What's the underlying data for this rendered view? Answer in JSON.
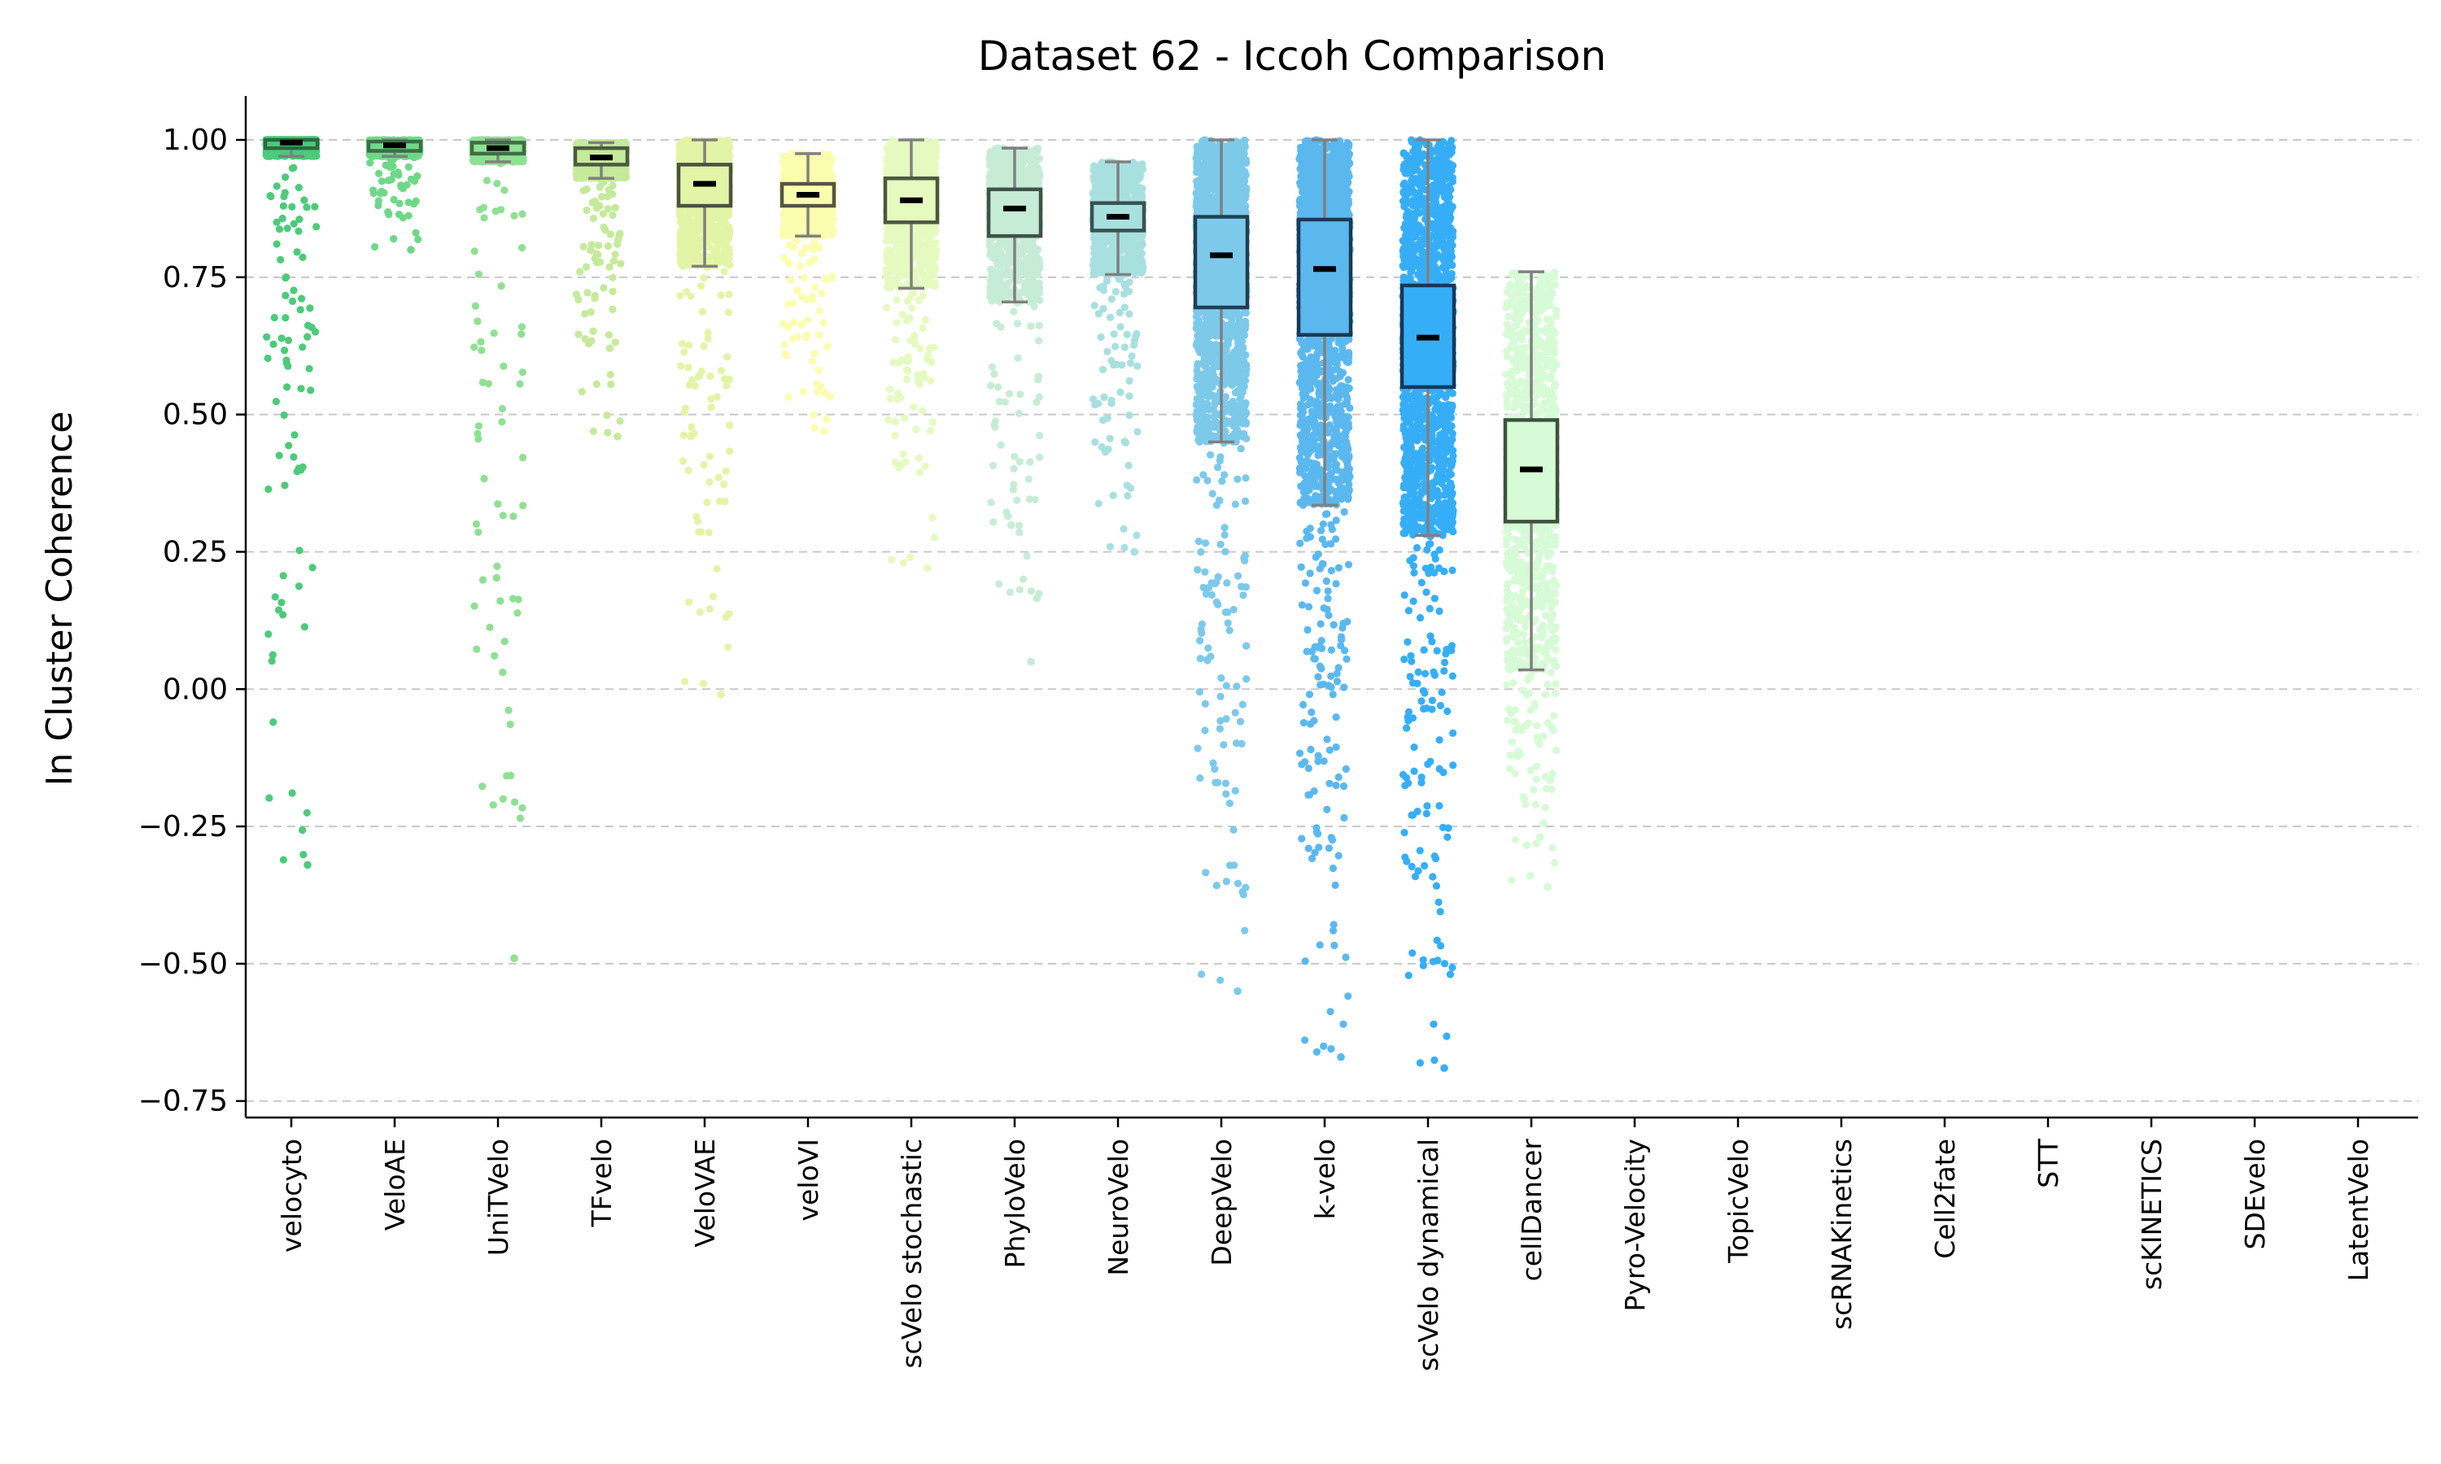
{
  "chart_data": {
    "type": "box",
    "title": "Dataset 62 - Iccoh Comparison",
    "xlabel": "",
    "ylabel": "In Cluster Coherence",
    "ylim": [
      -0.78,
      1.08
    ],
    "yticks": [
      -0.75,
      -0.5,
      -0.25,
      0.0,
      0.25,
      0.5,
      0.75,
      1.0
    ],
    "ytick_labels": [
      "−0.75",
      "−0.50",
      "−0.25",
      "0.00",
      "0.25",
      "0.50",
      "0.75",
      "1.00"
    ],
    "grid": "horizontal dashed",
    "categories": [
      "velocyto",
      "VeloAE",
      "UniTVelo",
      "TFvelo",
      "VeloVAE",
      "veloVI",
      "scVelo stochastic",
      "PhyloVelo",
      "NeuroVelo",
      "DeepVelo",
      "k-velo",
      "scVelo dynamical",
      "cellDancer",
      "Pyro-Velocity",
      "TopicVelo",
      "scRNAKinetics",
      "Cell2fate",
      "STT",
      "scKINETICS",
      "SDEvelo",
      "LatentVelo"
    ],
    "series": [
      {
        "name": "velocyto",
        "color": "#4dca7a",
        "box_color": "#2a6b43",
        "whislo": 0.97,
        "q1": 0.985,
        "median": 0.995,
        "q3": 1.0,
        "whishi": 1.0,
        "point_min": -0.32,
        "n_points": 1500
      },
      {
        "name": "VeloAE",
        "color": "#6fd888",
        "box_color": "#3a6e48",
        "whislo": 0.97,
        "q1": 0.98,
        "median": 0.99,
        "q3": 0.997,
        "whishi": 1.0,
        "point_min": 0.8,
        "n_points": 900
      },
      {
        "name": "UniTVelo",
        "color": "#8fe093",
        "box_color": "#426b45",
        "whislo": 0.96,
        "q1": 0.975,
        "median": 0.985,
        "q3": 0.995,
        "whishi": 1.0,
        "point_min": -0.49,
        "n_points": 1500
      },
      {
        "name": "TFvelo",
        "color": "#c4ea9a",
        "box_color": "#4d5a40",
        "whislo": 0.93,
        "q1": 0.955,
        "median": 0.968,
        "q3": 0.985,
        "whishi": 0.995,
        "point_min": 0.46,
        "n_points": 1200
      },
      {
        "name": "VeloVAE",
        "color": "#e4f4a6",
        "box_color": "#4d5240",
        "whislo": 0.77,
        "q1": 0.88,
        "median": 0.92,
        "q3": 0.955,
        "whishi": 1.0,
        "point_min": -0.01,
        "n_points": 1500
      },
      {
        "name": "veloVI",
        "color": "#fbfdae",
        "box_color": "#555540",
        "whislo": 0.825,
        "q1": 0.88,
        "median": 0.9,
        "q3": 0.92,
        "whishi": 0.975,
        "point_min": 0.47,
        "n_points": 1200
      },
      {
        "name": "scVelo stochastic",
        "color": "#e6fac0",
        "box_color": "#4d5740",
        "whislo": 0.73,
        "q1": 0.85,
        "median": 0.89,
        "q3": 0.93,
        "whishi": 1.0,
        "point_min": 0.22,
        "n_points": 1300
      },
      {
        "name": "PhyloVelo",
        "color": "#c6ecd6",
        "box_color": "#3f5348",
        "whislo": 0.705,
        "q1": 0.825,
        "median": 0.875,
        "q3": 0.91,
        "whishi": 0.985,
        "point_min": 0.05,
        "n_points": 1300
      },
      {
        "name": "NeuroVelo",
        "color": "#a8e0df",
        "box_color": "#385250",
        "whislo": 0.755,
        "q1": 0.835,
        "median": 0.86,
        "q3": 0.885,
        "whishi": 0.96,
        "point_min": 0.25,
        "n_points": 1300
      },
      {
        "name": "DeepVelo",
        "color": "#7cc9ea",
        "box_color": "#1f3f55",
        "whislo": 0.45,
        "q1": 0.695,
        "median": 0.79,
        "q3": 0.86,
        "whishi": 1.0,
        "point_min": -0.55,
        "n_points": 2200
      },
      {
        "name": "k-velo",
        "color": "#5bb8ef",
        "box_color": "#1a3a55",
        "whislo": 0.335,
        "q1": 0.645,
        "median": 0.765,
        "q3": 0.855,
        "whishi": 1.0,
        "point_min": -0.67,
        "n_points": 2400
      },
      {
        "name": "scVelo dynamical",
        "color": "#36aef7",
        "box_color": "#15385a",
        "whislo": 0.28,
        "q1": 0.55,
        "median": 0.64,
        "q3": 0.735,
        "whishi": 1.0,
        "point_min": -0.69,
        "n_points": 2400
      },
      {
        "name": "cellDancer",
        "color": "#d6fbd6",
        "box_color": "#3e523e",
        "whislo": 0.035,
        "q1": 0.305,
        "median": 0.4,
        "q3": 0.49,
        "whishi": 0.76,
        "point_min": -0.36,
        "n_points": 1500
      },
      {
        "name": "Pyro-Velocity",
        "color": "#cccccc",
        "box_color": "#808080",
        "whislo": null,
        "q1": null,
        "median": null,
        "q3": null,
        "whishi": null,
        "point_min": null,
        "n_points": 0
      },
      {
        "name": "TopicVelo",
        "color": "#cccccc",
        "box_color": "#808080",
        "whislo": null,
        "q1": null,
        "median": null,
        "q3": null,
        "whishi": null,
        "point_min": null,
        "n_points": 0
      },
      {
        "name": "scRNAKinetics",
        "color": "#cccccc",
        "box_color": "#808080",
        "whislo": null,
        "q1": null,
        "median": null,
        "q3": null,
        "whishi": null,
        "point_min": null,
        "n_points": 0
      },
      {
        "name": "Cell2fate",
        "color": "#cccccc",
        "box_color": "#808080",
        "whislo": null,
        "q1": null,
        "median": null,
        "q3": null,
        "whishi": null,
        "point_min": null,
        "n_points": 0
      },
      {
        "name": "STT",
        "color": "#cccccc",
        "box_color": "#808080",
        "whislo": null,
        "q1": null,
        "median": null,
        "q3": null,
        "whishi": null,
        "point_min": null,
        "n_points": 0
      },
      {
        "name": "scKINETICS",
        "color": "#cccccc",
        "box_color": "#808080",
        "whislo": null,
        "q1": null,
        "median": null,
        "q3": null,
        "whishi": null,
        "point_min": null,
        "n_points": 0
      },
      {
        "name": "SDEvelo",
        "color": "#cccccc",
        "box_color": "#808080",
        "whislo": null,
        "q1": null,
        "median": null,
        "q3": null,
        "whishi": null,
        "point_min": null,
        "n_points": 0
      },
      {
        "name": "LatentVelo",
        "color": "#cccccc",
        "box_color": "#808080",
        "whislo": null,
        "q1": null,
        "median": null,
        "q3": null,
        "whishi": null,
        "point_min": null,
        "n_points": 0
      }
    ]
  }
}
